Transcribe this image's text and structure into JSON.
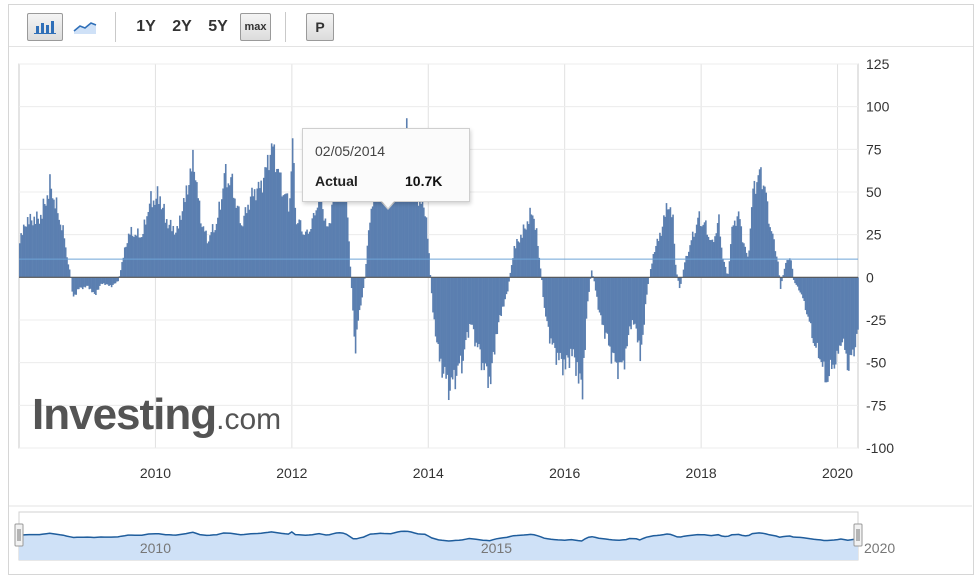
{
  "toolbar": {
    "bar_chart_button": "bar-chart-icon",
    "line_chart_button": "line-chart-icon",
    "ranges": [
      "1Y",
      "2Y",
      "5Y"
    ],
    "max_label": "max",
    "p_label": "P"
  },
  "tooltip": {
    "date": "02/05/2014",
    "label": "Actual",
    "value": "10.7K"
  },
  "brand": {
    "main": "Investing",
    "suffix": ".com"
  },
  "colors": {
    "bar": "#5b7fb0",
    "bar_edge": "#3d5f8f",
    "reference_line": "#6ea4d8",
    "navigator_fill": "#cfe1f7",
    "navigator_line": "#1f5d9c"
  },
  "chart_data": {
    "type": "bar",
    "ylim": [
      -100,
      125
    ],
    "yticks": [
      125,
      100,
      75,
      50,
      25,
      0,
      -25,
      -50,
      -75,
      -100
    ],
    "xticks": [
      2010,
      2012,
      2014,
      2016,
      2018,
      2020
    ],
    "x_range": [
      2008.0,
      2020.3
    ],
    "reference_value": 10.7,
    "grid": true,
    "anchors": [
      [
        2008.0,
        25
      ],
      [
        2008.1,
        38
      ],
      [
        2008.3,
        40
      ],
      [
        2008.45,
        62
      ],
      [
        2008.55,
        45
      ],
      [
        2008.65,
        28
      ],
      [
        2008.7,
        12
      ],
      [
        2008.75,
        0
      ],
      [
        2008.78,
        -15
      ],
      [
        2008.85,
        -8
      ],
      [
        2009.0,
        -6
      ],
      [
        2009.1,
        -12
      ],
      [
        2009.2,
        -4
      ],
      [
        2009.35,
        -6
      ],
      [
        2009.45,
        -2
      ],
      [
        2009.5,
        10
      ],
      [
        2009.6,
        30
      ],
      [
        2009.8,
        28
      ],
      [
        2009.9,
        50
      ],
      [
        2010.05,
        55
      ],
      [
        2010.15,
        38
      ],
      [
        2010.3,
        30
      ],
      [
        2010.45,
        58
      ],
      [
        2010.55,
        80
      ],
      [
        2010.65,
        40
      ],
      [
        2010.75,
        25
      ],
      [
        2010.9,
        38
      ],
      [
        2011.0,
        68
      ],
      [
        2011.1,
        65
      ],
      [
        2011.25,
        35
      ],
      [
        2011.4,
        55
      ],
      [
        2011.55,
        62
      ],
      [
        2011.7,
        88
      ],
      [
        2011.85,
        60
      ],
      [
        2011.95,
        48
      ],
      [
        2012.0,
        88
      ],
      [
        2012.05,
        40
      ],
      [
        2012.2,
        28
      ],
      [
        2012.3,
        38
      ],
      [
        2012.4,
        58
      ],
      [
        2012.5,
        32
      ],
      [
        2012.55,
        38
      ],
      [
        2012.65,
        68
      ],
      [
        2012.72,
        72
      ],
      [
        2012.78,
        60
      ],
      [
        2012.85,
        5
      ],
      [
        2012.92,
        -50
      ],
      [
        2012.97,
        -25
      ],
      [
        2013.05,
        -5
      ],
      [
        2013.15,
        48
      ],
      [
        2013.3,
        62
      ],
      [
        2013.45,
        55
      ],
      [
        2013.55,
        85
      ],
      [
        2013.62,
        100
      ],
      [
        2013.72,
        95
      ],
      [
        2013.85,
        52
      ],
      [
        2013.95,
        45
      ],
      [
        2014.0,
        15
      ],
      [
        2014.05,
        -20
      ],
      [
        2014.15,
        -55
      ],
      [
        2014.3,
        -75
      ],
      [
        2014.4,
        -65
      ],
      [
        2014.5,
        -55
      ],
      [
        2014.6,
        -30
      ],
      [
        2014.7,
        -45
      ],
      [
        2014.8,
        -60
      ],
      [
        2014.9,
        -70
      ],
      [
        2014.98,
        -40
      ],
      [
        2015.05,
        -25
      ],
      [
        2015.15,
        -10
      ],
      [
        2015.25,
        20
      ],
      [
        2015.35,
        28
      ],
      [
        2015.45,
        38
      ],
      [
        2015.52,
        45
      ],
      [
        2015.58,
        28
      ],
      [
        2015.65,
        0
      ],
      [
        2015.7,
        -25
      ],
      [
        2015.8,
        -45
      ],
      [
        2015.9,
        -55
      ],
      [
        2016.0,
        -60
      ],
      [
        2016.1,
        -50
      ],
      [
        2016.2,
        -68
      ],
      [
        2016.25,
        -75
      ],
      [
        2016.32,
        -20
      ],
      [
        2016.38,
        5
      ],
      [
        2016.42,
        -2
      ],
      [
        2016.5,
        -25
      ],
      [
        2016.6,
        -40
      ],
      [
        2016.7,
        -55
      ],
      [
        2016.8,
        -62
      ],
      [
        2016.9,
        -50
      ],
      [
        2016.95,
        -30
      ],
      [
        2017.05,
        -35
      ],
      [
        2017.1,
        -58
      ],
      [
        2017.15,
        -30
      ],
      [
        2017.2,
        -8
      ],
      [
        2017.3,
        18
      ],
      [
        2017.4,
        30
      ],
      [
        2017.5,
        50
      ],
      [
        2017.58,
        38
      ],
      [
        2017.62,
        5
      ],
      [
        2017.68,
        -8
      ],
      [
        2017.75,
        10
      ],
      [
        2017.85,
        25
      ],
      [
        2017.95,
        40
      ],
      [
        2018.05,
        35
      ],
      [
        2018.15,
        22
      ],
      [
        2018.25,
        38
      ],
      [
        2018.3,
        15
      ],
      [
        2018.38,
        0
      ],
      [
        2018.45,
        35
      ],
      [
        2018.55,
        42
      ],
      [
        2018.6,
        25
      ],
      [
        2018.68,
        12
      ],
      [
        2018.75,
        58
      ],
      [
        2018.85,
        70
      ],
      [
        2018.92,
        62
      ],
      [
        2018.98,
        40
      ],
      [
        2019.05,
        25
      ],
      [
        2019.12,
        10
      ],
      [
        2019.15,
        -8
      ],
      [
        2019.22,
        8
      ],
      [
        2019.3,
        15
      ],
      [
        2019.35,
        -3
      ],
      [
        2019.45,
        -10
      ],
      [
        2019.55,
        -25
      ],
      [
        2019.65,
        -45
      ],
      [
        2019.75,
        -55
      ],
      [
        2019.82,
        -70
      ],
      [
        2019.9,
        -60
      ],
      [
        2019.98,
        -55
      ],
      [
        2020.05,
        -40
      ],
      [
        2020.15,
        -60
      ],
      [
        2020.22,
        -50
      ],
      [
        2020.3,
        -35
      ]
    ]
  },
  "navigator": {
    "labels": [
      "2010",
      "2015",
      "2020"
    ]
  }
}
